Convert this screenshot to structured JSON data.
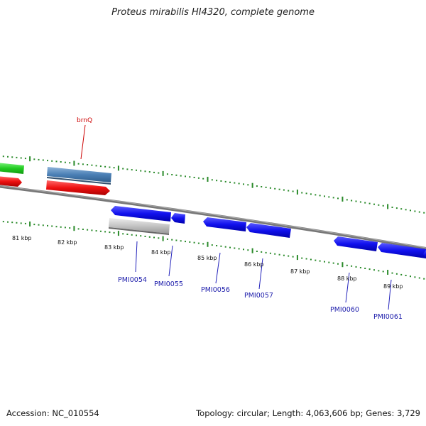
{
  "title": "Proteus mirabilis HI4320, complete genome",
  "footer": {
    "accession": "Accession: NC_010554",
    "summary": "Topology: circular; Length: 4,063,606 bp; Genes: 3,729"
  },
  "scale_labels": [
    "81 kbp",
    "82 kbp",
    "83 kbp",
    "84 kbp",
    "85 kbp",
    "86 kbp",
    "87 kbp",
    "88 kbp",
    "89 kbp"
  ],
  "gene_labels": {
    "brnQ": "brnQ",
    "PMI0054": "PMI0054",
    "PMI0055": "PMI0055",
    "PMI0056": "PMI0056",
    "PMI0057": "PMI0057",
    "PMI0060": "PMI0060",
    "PMI0061": "PMI0061"
  },
  "colors": {
    "green": "#33cc33",
    "red": "#ee1111",
    "steelblue": "#4a7fb5",
    "blue": "#1111ee",
    "gray": "#bbbbbb",
    "tick": "#2a8a2a",
    "backbone": "#888888"
  }
}
